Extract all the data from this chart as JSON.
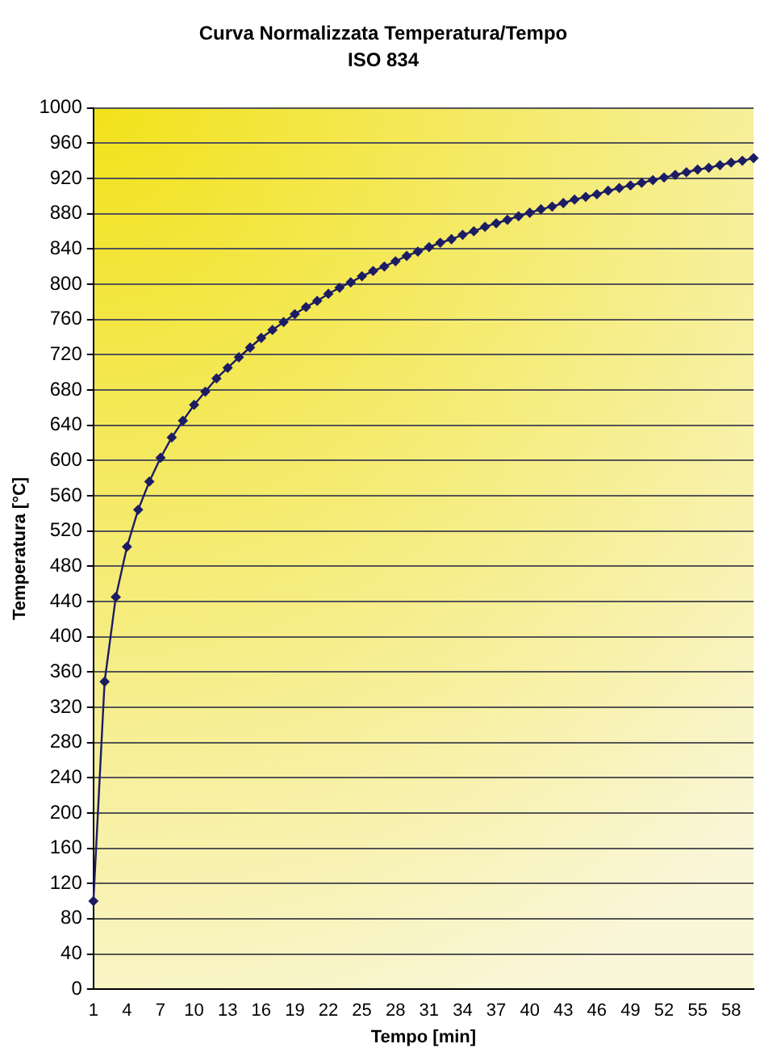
{
  "chart_data": {
    "type": "line",
    "title": "Curva Normalizzata Temperatura/Tempo",
    "subtitle": "ISO 834",
    "xlabel": "Tempo [min]",
    "ylabel": "Temperatura [°C]",
    "categories": [
      "1",
      null,
      null,
      "4",
      null,
      null,
      "7",
      null,
      null,
      "10",
      null,
      null,
      "13",
      null,
      null,
      "16",
      null,
      null,
      "19",
      null,
      null,
      "22",
      null,
      null,
      "25",
      null,
      null,
      "28",
      null,
      null,
      "31",
      null,
      null,
      "34",
      null,
      null,
      "37",
      null,
      null,
      "40",
      null,
      null,
      "43",
      null,
      null,
      "46",
      null,
      null,
      "49",
      null,
      null,
      "52",
      null,
      null,
      "55",
      null,
      null,
      "58",
      null,
      null
    ],
    "series": [
      {
        "color": "#1c1c64",
        "values": [
          100,
          349,
          445,
          502,
          544,
          576,
          603,
          626,
          645,
          663,
          678,
          693,
          705,
          717,
          728,
          739,
          748,
          757,
          766,
          774,
          781,
          789,
          796,
          802,
          809,
          815,
          820,
          826,
          832,
          837,
          842,
          847,
          851,
          856,
          860,
          865,
          869,
          873,
          877,
          881,
          885,
          888,
          892,
          896,
          899,
          902,
          906,
          909,
          912,
          915,
          918,
          921,
          924,
          927,
          930,
          932,
          935,
          938,
          940,
          943
        ]
      }
    ],
    "ylim": [
      0,
      1000
    ],
    "yticks": [
      0,
      40,
      80,
      120,
      160,
      200,
      240,
      280,
      320,
      360,
      400,
      440,
      480,
      520,
      560,
      600,
      640,
      680,
      720,
      760,
      800,
      840,
      880,
      920,
      960,
      1000
    ],
    "grid": "y",
    "marker": "diamond",
    "line_style": "solid",
    "legend": false
  }
}
